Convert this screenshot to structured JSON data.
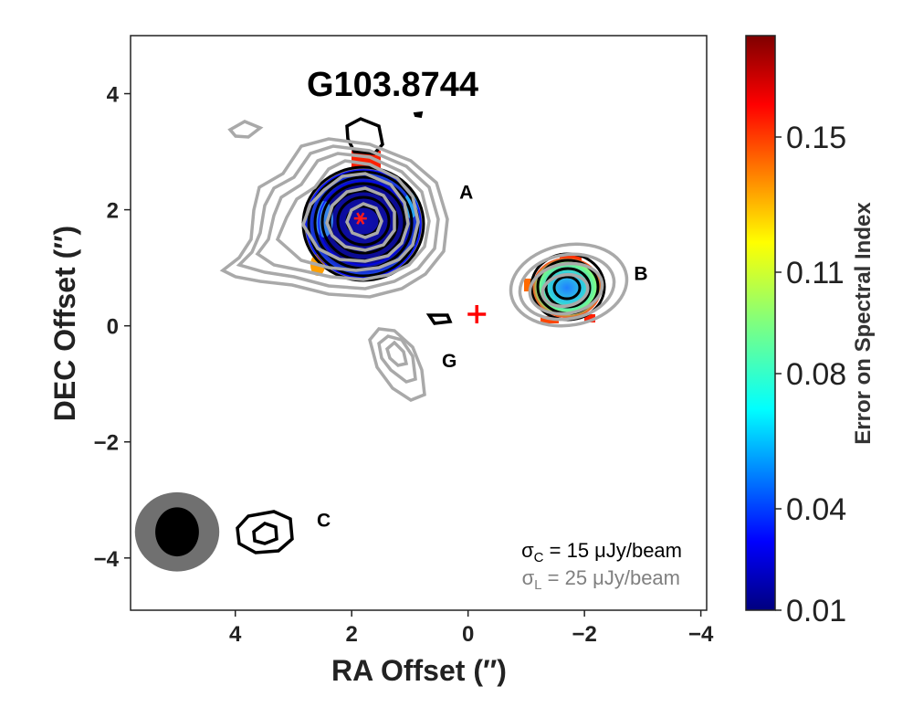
{
  "chart_data": {
    "type": "contour",
    "title": "G103.8744",
    "xlabel": "RA Offset (″)",
    "ylabel": "DEC Offset (″)",
    "xlim": [
      5.8,
      -4.1
    ],
    "ylim": [
      -4.9,
      5.0
    ],
    "x_ticks": [
      {
        "value": 4,
        "label": "4"
      },
      {
        "value": 2,
        "label": "2"
      },
      {
        "value": 0,
        "label": "0"
      },
      {
        "value": -2,
        "label": "−2"
      },
      {
        "value": -4,
        "label": "−4"
      }
    ],
    "y_ticks": [
      {
        "value": 4,
        "label": "4"
      },
      {
        "value": 2,
        "label": "2"
      },
      {
        "value": 0,
        "label": "0"
      },
      {
        "value": -2,
        "label": "−2"
      },
      {
        "value": -4,
        "label": "−4"
      }
    ],
    "colorbar": {
      "label": "Error on Spectral Index",
      "colormap": "jet",
      "range": [
        0.01,
        0.18
      ],
      "ticks": [
        {
          "value": 0.01,
          "label": "0.01"
        },
        {
          "value": 0.04,
          "label": "0.04"
        },
        {
          "value": 0.08,
          "label": "0.08"
        },
        {
          "value": 0.11,
          "label": "0.11"
        },
        {
          "value": 0.15,
          "label": "0.15"
        }
      ]
    },
    "sources": [
      {
        "name": "A",
        "x": 1.85,
        "y": 1.85,
        "label_x": 0.15,
        "label_y": 2.3
      },
      {
        "name": "B",
        "x": -1.7,
        "y": 0.7,
        "label_x": -2.85,
        "label_y": 0.9
      },
      {
        "name": "G",
        "x": 1.3,
        "y": -0.5,
        "label_x": 0.45,
        "label_y": -0.6
      },
      {
        "name": "C",
        "x": 3.6,
        "y": -3.5,
        "label_x": 2.6,
        "label_y": -3.35
      }
    ],
    "markers": [
      {
        "type": "star",
        "x": 1.85,
        "y": 1.85,
        "color": "#ff1a1a"
      },
      {
        "type": "plus",
        "x": -0.15,
        "y": 0.2,
        "color": "#ff0000"
      }
    ],
    "beams": [
      {
        "name": "line beam",
        "x": 5.0,
        "y": -3.55,
        "bmaj": 1.45,
        "bmin": 1.05,
        "color": "#707070"
      },
      {
        "name": "continuum beam",
        "x": 5.0,
        "y": -3.55,
        "bmaj": 0.75,
        "bmin": 0.65,
        "color": "#000000"
      }
    ],
    "contour_colors": {
      "continuum": "#000000",
      "line": "#a9a9a9"
    },
    "noise": {
      "continuum": {
        "symbol": "σ",
        "sub": "C",
        "text": " = 15 μJy/beam",
        "color": "#000000"
      },
      "line": {
        "symbol": "σ",
        "sub": "L",
        "text": " = 25 μJy/beam",
        "color": "#808080"
      }
    }
  }
}
